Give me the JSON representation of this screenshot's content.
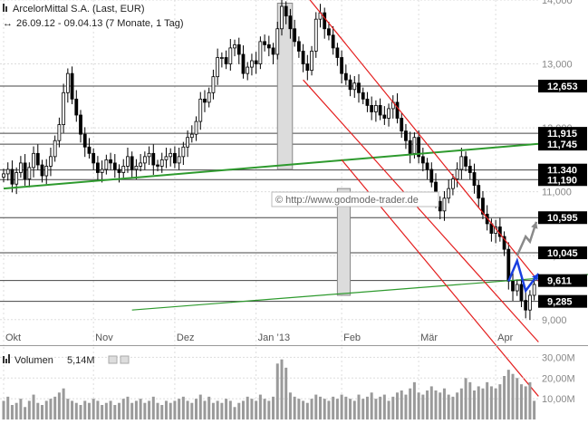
{
  "header": {
    "title": "ArcelorMittal S.A. (Last, EUR)",
    "subtitle": "26.09.12 - 09.04.13 (7 Monate, 1 Tag)"
  },
  "watermark": "© http://www.godmode-trader.de",
  "volume_panel": {
    "label": "Volumen",
    "value": "5,14M"
  },
  "colors": {
    "candle": "#000000",
    "green_line": "#2e9a2e",
    "red_channel": "#e41e1e",
    "blue_arrow": "#1a3fe0",
    "grey_arrow": "#8a8a8a",
    "level_line": "#444444",
    "grid": "#dddddd",
    "label_bg": "#000000",
    "label_text": "#ffffff"
  },
  "chart_data": {
    "type": "candlestick",
    "title": "ArcelorMittal S.A. (Last, EUR)",
    "date_range": "26.09.12 - 09.04.13",
    "ylim": [
      8.6,
      14.0
    ],
    "y_ticks": [
      "9,000",
      "10,000",
      "11,000",
      "12,000",
      "13,000",
      "14,000"
    ],
    "x_ticks": [
      "Okt",
      "Nov",
      "Dez",
      "Jan 13",
      "Feb",
      "Mär",
      "Apr"
    ],
    "levels": [
      {
        "value": 12.653,
        "label": "12,653"
      },
      {
        "value": 11.915,
        "label": "11,915"
      },
      {
        "value": 11.745,
        "label": "11,745"
      },
      {
        "value": 11.34,
        "label": "11,340"
      },
      {
        "value": 11.19,
        "label": "11,190"
      },
      {
        "value": 10.595,
        "label": "10,595"
      },
      {
        "value": 10.045,
        "label": "10,045"
      },
      {
        "value": 9.611,
        "label": "9,611"
      },
      {
        "value": 9.285,
        "label": "9,285"
      }
    ],
    "price_series": [
      11.28,
      11.35,
      11.12,
      11.3,
      11.45,
      11.2,
      11.38,
      11.6,
      11.42,
      11.25,
      11.4,
      11.55,
      11.8,
      12.05,
      12.55,
      12.85,
      12.45,
      12.2,
      11.9,
      11.7,
      11.6,
      11.45,
      11.3,
      11.35,
      11.5,
      11.45,
      11.35,
      11.3,
      11.4,
      11.55,
      11.35,
      11.4,
      11.45,
      11.55,
      11.6,
      11.42,
      11.4,
      11.5,
      11.55,
      11.6,
      11.45,
      11.55,
      11.7,
      11.85,
      11.9,
      12.1,
      12.45,
      12.4,
      12.55,
      12.8,
      13.1,
      13.1,
      13.0,
      13.25,
      13.3,
      13.15,
      12.85,
      12.95,
      13.05,
      13.0,
      13.35,
      13.3,
      13.25,
      13.15,
      13.55,
      13.9,
      13.75,
      13.55,
      13.35,
      13.2,
      13.0,
      12.9,
      13.2,
      13.7,
      13.8,
      13.55,
      13.45,
      13.25,
      13.1,
      12.85,
      12.75,
      12.6,
      12.7,
      12.55,
      12.45,
      12.35,
      12.25,
      12.35,
      12.2,
      12.15,
      12.3,
      12.4,
      12.15,
      11.95,
      11.8,
      11.6,
      11.85,
      11.55,
      11.45,
      11.35,
      11.15,
      10.85,
      10.7,
      10.9,
      11.05,
      11.2,
      11.35,
      11.55,
      11.4,
      11.3,
      11.1,
      10.9,
      10.65,
      10.5,
      10.35,
      10.45,
      10.3,
      10.1,
      9.6,
      9.45,
      9.55,
      9.3,
      9.15,
      9.38,
      9.55
    ],
    "volume": {
      "label": "Volumen",
      "last": "5,14M",
      "ylim": [
        0,
        35
      ],
      "y_ticks": [
        "10,00M",
        "20,00M",
        "30,00M"
      ],
      "values": [
        9,
        11,
        7,
        8,
        10,
        6,
        9,
        12,
        8,
        7,
        9,
        10,
        11,
        13,
        15,
        10,
        9,
        8,
        7,
        9,
        8,
        10,
        9,
        7,
        8,
        9,
        7,
        8,
        10,
        11,
        8,
        9,
        10,
        8,
        9,
        11,
        8,
        7,
        9,
        8,
        9,
        10,
        11,
        9,
        8,
        10,
        12,
        9,
        11,
        8,
        9,
        8,
        10,
        9,
        6,
        8,
        9,
        11,
        10,
        9,
        12,
        10,
        9,
        11,
        27,
        29,
        25,
        13,
        11,
        10,
        9,
        8,
        10,
        12,
        11,
        10,
        9,
        11,
        10,
        12,
        11,
        10,
        9,
        12,
        10,
        11,
        13,
        10,
        11,
        12,
        9,
        11,
        13,
        14,
        12,
        15,
        18,
        13,
        12,
        14,
        16,
        14,
        13,
        15,
        12,
        11,
        13,
        15,
        20,
        18,
        14,
        16,
        15,
        18,
        16,
        15,
        17,
        21,
        24,
        22,
        20,
        17,
        16,
        18,
        9
      ]
    },
    "overlays": {
      "green_trend_upper": [
        [
          0,
          11.05
        ],
        [
          125,
          11.75
        ]
      ],
      "green_trend_lower": [
        [
          30,
          9.15
        ],
        [
          145,
          9.75
        ]
      ],
      "red_channel_top": [
        [
          71,
          14.05
        ],
        [
          125,
          9.6
        ]
      ],
      "red_channel_mid": [
        [
          70,
          12.75
        ],
        [
          125,
          8.65
        ]
      ],
      "red_channel_bottom": [
        [
          79,
          11.5
        ],
        [
          125,
          7.8
        ]
      ],
      "grey_boxes": [
        [
          [
            64,
            13.95
          ],
          [
            67.5,
            11.35
          ]
        ],
        [
          [
            78,
            11.05
          ],
          [
            81,
            9.38
          ]
        ]
      ],
      "grey_arrow": [
        [
          120,
          10.0
        ],
        [
          122,
          10.3
        ],
        [
          123,
          10.22
        ],
        [
          124.5,
          10.53
        ]
      ],
      "blue_arrow": [
        [
          118,
          9.6
        ],
        [
          120,
          9.92
        ],
        [
          122,
          9.45
        ],
        [
          125,
          9.72
        ]
      ]
    }
  }
}
